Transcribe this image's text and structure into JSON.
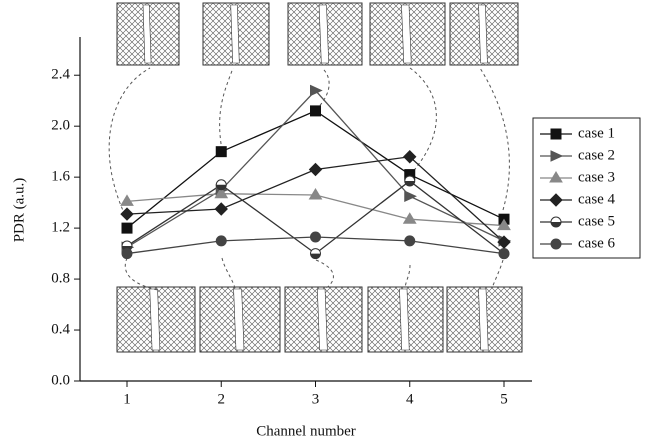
{
  "chart_data": {
    "type": "line",
    "x_label": "Channel number",
    "y_label": "PDR (a.u.)",
    "x": [
      1,
      2,
      3,
      4,
      5
    ],
    "xlim": [
      0.5,
      5.3
    ],
    "xticks": [
      1,
      2,
      3,
      4,
      5
    ],
    "ylim": [
      0,
      2.7
    ],
    "yticks": [
      {
        "value": 0,
        "label": "0.0"
      },
      0.4,
      0.8,
      1.2,
      1.6,
      {
        "value": 2,
        "label": "2.0"
      },
      2.4
    ],
    "legend": "right",
    "series": [
      {
        "name": "case 1",
        "color": "#111111",
        "marker": "square",
        "values": [
          1.2,
          1.8,
          2.12,
          1.62,
          1.27
        ]
      },
      {
        "name": "case 2",
        "color": "#555555",
        "marker": "triangle-right",
        "values": [
          1.05,
          1.5,
          2.28,
          1.45,
          1.1
        ]
      },
      {
        "name": "case 3",
        "color": "#888888",
        "marker": "triangle-up",
        "values": [
          1.41,
          1.47,
          1.46,
          1.27,
          1.22
        ]
      },
      {
        "name": "case 4",
        "color": "#222222",
        "marker": "diamond",
        "values": [
          1.31,
          1.35,
          1.66,
          1.76,
          1.09
        ]
      },
      {
        "name": "case 5",
        "color": "#333333",
        "marker": "half-circle",
        "values": [
          1.06,
          1.54,
          1.0,
          1.57,
          1.0
        ]
      },
      {
        "name": "case 6",
        "color": "#444444",
        "marker": "circle",
        "values": [
          1.0,
          1.1,
          1.13,
          1.1,
          1.0
        ]
      }
    ]
  }
}
